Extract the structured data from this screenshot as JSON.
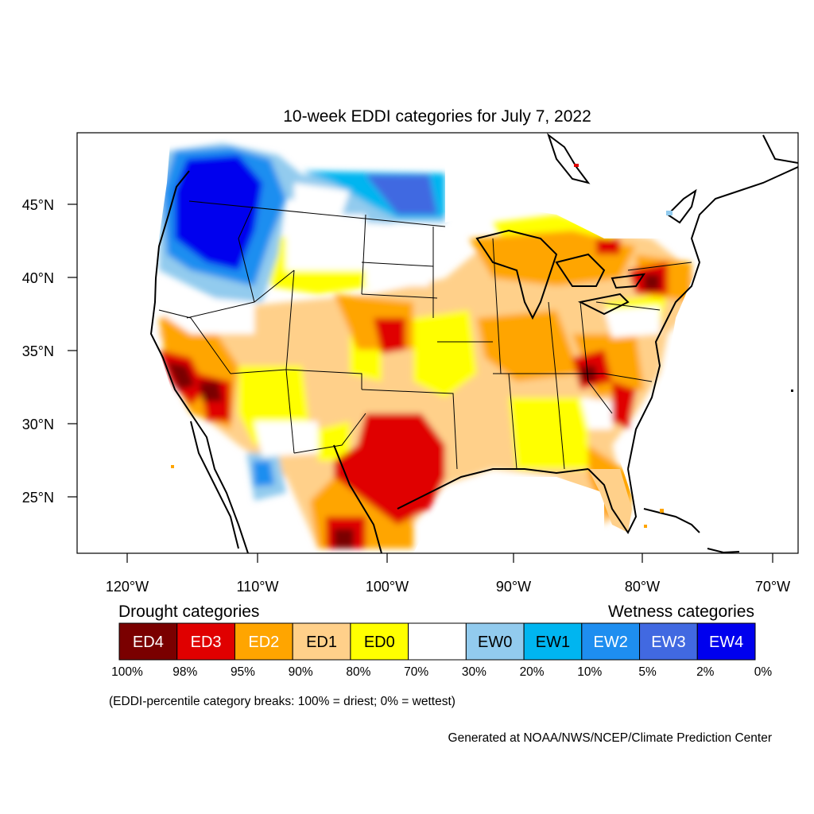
{
  "title": "10-week EDDI categories for July 7, 2022",
  "axes": {
    "lat_ticks": [
      "45°N",
      "40°N",
      "35°N",
      "30°N",
      "25°N"
    ],
    "lon_ticks": [
      "120°W",
      "110°W",
      "100°W",
      "90°W",
      "80°W",
      "70°W"
    ]
  },
  "legend": {
    "drought_heading": "Drought categories",
    "wetness_heading": "Wetness categories",
    "categories": [
      {
        "label": "ED4",
        "color": "#7a0000",
        "text_color": "#ffffff"
      },
      {
        "label": "ED3",
        "color": "#e00000",
        "text_color": "#ffffff"
      },
      {
        "label": "ED2",
        "color": "#ffa500",
        "text_color": "#ffffff"
      },
      {
        "label": "ED1",
        "color": "#ffd08a",
        "text_color": "#000000"
      },
      {
        "label": "ED0",
        "color": "#ffff00",
        "text_color": "#000000"
      },
      {
        "label": "",
        "color": "#ffffff",
        "text_color": "#000000"
      },
      {
        "label": "EW0",
        "color": "#92cbee",
        "text_color": "#000000"
      },
      {
        "label": "EW1",
        "color": "#00b5f0",
        "text_color": "#000000"
      },
      {
        "label": "EW2",
        "color": "#1e8ef0",
        "text_color": "#ffffff"
      },
      {
        "label": "EW3",
        "color": "#4169e1",
        "text_color": "#ffffff"
      },
      {
        "label": "EW4",
        "color": "#0000ee",
        "text_color": "#ffffff"
      }
    ],
    "breaks": [
      "100%",
      "98%",
      "95%",
      "90%",
      "80%",
      "70%",
      "30%",
      "20%",
      "10%",
      "5%",
      "2%",
      "0%"
    ]
  },
  "note": "(EDDI-percentile category breaks: 100% = driest; 0% = wettest)",
  "credit": "Generated at NOAA/NWS/NCEP/Climate Prediction Center"
}
